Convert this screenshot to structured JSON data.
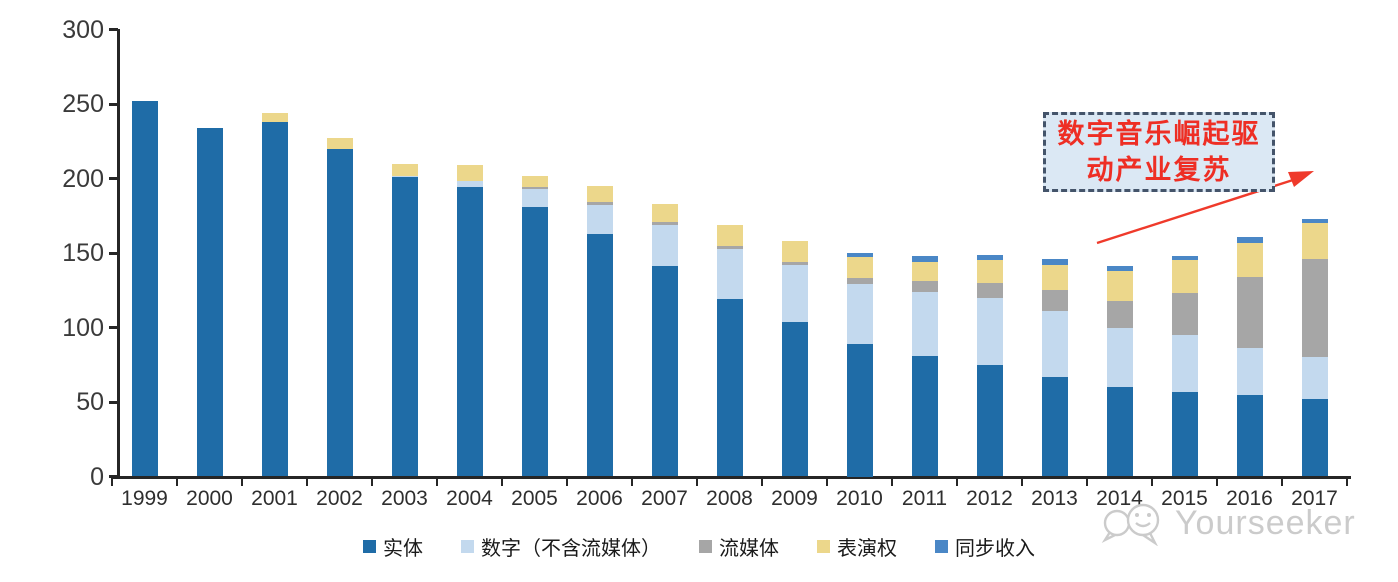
{
  "chart_data": {
    "type": "bar",
    "stacked": true,
    "categories": [
      "1999",
      "2000",
      "2001",
      "2002",
      "2003",
      "2004",
      "2005",
      "2006",
      "2007",
      "2008",
      "2009",
      "2010",
      "2011",
      "2012",
      "2013",
      "2014",
      "2015",
      "2016",
      "2017"
    ],
    "series": [
      {
        "name": "实体",
        "color": "#1f6ca7",
        "values": [
          252,
          234,
          238,
          220,
          201,
          194,
          181,
          163,
          141,
          119,
          104,
          89,
          81,
          75,
          67,
          60,
          57,
          55,
          52
        ]
      },
      {
        "name": "数字（不含流媒体）",
        "color": "#c3d9ee",
        "values": [
          0,
          0,
          0,
          0,
          1,
          4,
          12,
          19,
          28,
          34,
          38,
          40,
          43,
          45,
          44,
          40,
          38,
          31,
          28
        ]
      },
      {
        "name": "流媒体",
        "color": "#a6a6a6",
        "values": [
          0,
          0,
          0,
          0,
          0,
          0,
          1,
          2,
          2,
          2,
          2,
          4,
          7,
          10,
          14,
          18,
          28,
          48,
          66
        ]
      },
      {
        "name": "表演权",
        "color": "#ecd78b",
        "values": [
          0,
          0,
          6,
          7,
          8,
          11,
          8,
          11,
          12,
          14,
          14,
          14,
          13,
          15,
          17,
          20,
          22,
          23,
          24
        ]
      },
      {
        "name": "同步收入",
        "color": "#4a87c6",
        "values": [
          0,
          0,
          0,
          0,
          0,
          0,
          0,
          0,
          0,
          0,
          0,
          3,
          4,
          4,
          4,
          3,
          3,
          4,
          3
        ]
      }
    ],
    "title": "",
    "xlabel": "",
    "ylabel": "",
    "ylim": [
      0,
      300
    ],
    "yticks": [
      0,
      50,
      100,
      150,
      200,
      250,
      300
    ],
    "grid": false,
    "legend_position": "bottom",
    "axis_color": "#262626"
  },
  "annotation": {
    "lines": [
      "数字音乐崛起驱",
      "动产业复苏"
    ],
    "full_text": "数字音乐崛起驱动产业复苏",
    "text_color": "#ee2e24",
    "border_color": "#44546a",
    "fill_color": "#dbe8f4",
    "arrow_color": "#ef3a2b"
  },
  "watermark": {
    "text": "Yourseeker",
    "logo": "speech-bubbles-logo",
    "color": "#c7c7c7"
  }
}
